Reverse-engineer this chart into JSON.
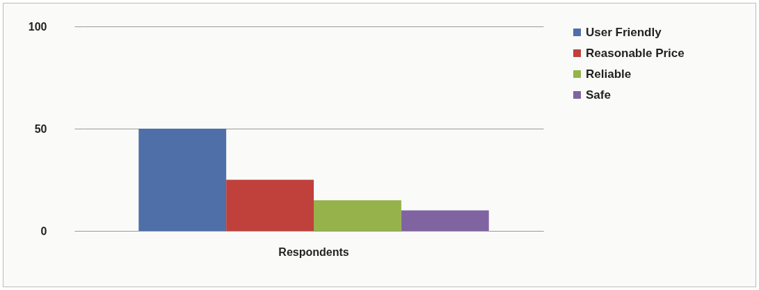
{
  "chart_data": {
    "type": "bar",
    "categories": [
      "Respondents"
    ],
    "series": [
      {
        "name": "User Friendly",
        "color": "#4f6fa8",
        "values": [
          50
        ]
      },
      {
        "name": "Reasonable Price",
        "color": "#c0403c",
        "values": [
          25
        ]
      },
      {
        "name": "Reliable",
        "color": "#95b34a",
        "values": [
          15
        ]
      },
      {
        "name": "Safe",
        "color": "#8064a2",
        "values": [
          10
        ]
      }
    ],
    "ylim": [
      0,
      100
    ],
    "yticks": [
      0,
      50,
      100
    ],
    "grid": "y",
    "legend": "right"
  }
}
